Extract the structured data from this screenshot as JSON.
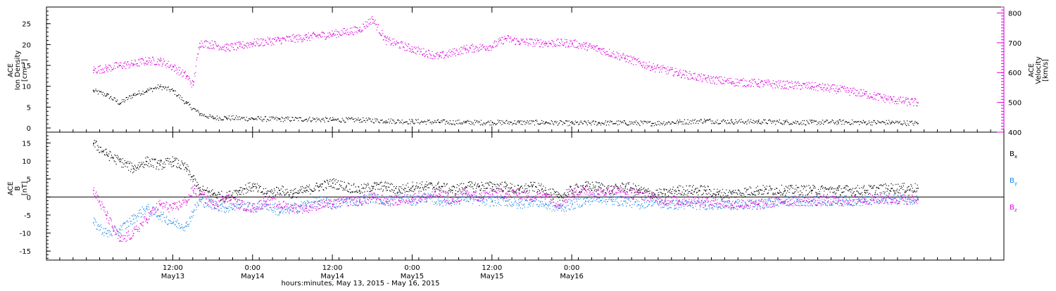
{
  "chart_data": [
    {
      "type": "scatter",
      "panel": "top",
      "ylabel_left_lines": [
        "ACE",
        "Ion Density",
        "[cm⁻³]"
      ],
      "ylabel_right_lines": [
        "ACE",
        "Velocity",
        "[km/s]"
      ],
      "ylim_left": [
        -1,
        29
      ],
      "ylim_right": [
        400,
        820
      ],
      "yticks_left": [
        0,
        5,
        10,
        15,
        20,
        25
      ],
      "yticks_right": [
        400,
        500,
        600,
        700,
        800
      ],
      "series": [
        {
          "axis": "left",
          "color": "#000000",
          "points": [
            [
              0,
              9
            ],
            [
              2,
              8
            ],
            [
              4,
              6
            ],
            [
              6,
              8
            ],
            [
              8,
              9
            ],
            [
              10,
              10
            ],
            [
              12,
              9
            ],
            [
              14,
              6
            ],
            [
              16,
              3.5
            ],
            [
              18,
              2.5
            ],
            [
              20,
              2.5
            ],
            [
              24,
              2.3
            ],
            [
              28,
              2.2
            ],
            [
              32,
              2.2
            ],
            [
              36,
              2.0
            ],
            [
              40,
              2.0
            ],
            [
              44,
              1.8
            ],
            [
              48,
              1.6
            ],
            [
              52,
              1.5
            ],
            [
              56,
              1.4
            ],
            [
              60,
              1.4
            ],
            [
              64,
              1.4
            ],
            [
              68,
              1.4
            ],
            [
              72,
              1.2
            ],
            [
              76,
              1.3
            ],
            [
              80,
              1.3
            ],
            [
              84,
              1.2
            ],
            [
              88,
              1.5
            ],
            [
              92,
              1.8
            ],
            [
              96,
              1.6
            ],
            [
              100,
              1.6
            ],
            [
              104,
              1.5
            ],
            [
              108,
              1.4
            ],
            [
              112,
              1.5
            ],
            [
              116,
              1.4
            ],
            [
              120,
              1.4
            ],
            [
              124,
              1.2
            ]
          ]
        },
        {
          "axis": "right",
          "color": "#dd00dd",
          "points": [
            [
              0,
              610
            ],
            [
              2,
              615
            ],
            [
              4,
              625
            ],
            [
              6,
              630
            ],
            [
              8,
              640
            ],
            [
              10,
              640
            ],
            [
              12,
              620
            ],
            [
              14,
              590
            ],
            [
              15,
              560
            ],
            [
              16,
              700
            ],
            [
              18,
              695
            ],
            [
              20,
              685
            ],
            [
              22,
              690
            ],
            [
              24,
              700
            ],
            [
              28,
              710
            ],
            [
              32,
              720
            ],
            [
              36,
              730
            ],
            [
              40,
              745
            ],
            [
              42,
              780
            ],
            [
              44,
              710
            ],
            [
              48,
              680
            ],
            [
              52,
              655
            ],
            [
              56,
              680
            ],
            [
              60,
              690
            ],
            [
              62,
              715
            ],
            [
              64,
              705
            ],
            [
              68,
              700
            ],
            [
              72,
              700
            ],
            [
              74,
              690
            ],
            [
              76,
              680
            ],
            [
              80,
              650
            ],
            [
              84,
              620
            ],
            [
              88,
              600
            ],
            [
              92,
              580
            ],
            [
              96,
              570
            ],
            [
              100,
              565
            ],
            [
              104,
              560
            ],
            [
              108,
              555
            ],
            [
              112,
              545
            ],
            [
              116,
              530
            ],
            [
              120,
              510
            ],
            [
              124,
              500
            ]
          ]
        }
      ]
    },
    {
      "type": "scatter",
      "panel": "bottom",
      "ylabel_left_lines": [
        "ACE",
        "B",
        "[nT]"
      ],
      "ylim": [
        -17.5,
        18
      ],
      "yticks": [
        -15,
        -10,
        -5,
        0,
        5,
        10,
        15
      ],
      "zero_line": true,
      "series": [
        {
          "name": "Bx",
          "label_main": "B",
          "label_sub": "x",
          "color": "#000000",
          "points": [
            [
              0,
              15
            ],
            [
              2,
              12
            ],
            [
              4,
              10
            ],
            [
              6,
              8
            ],
            [
              8,
              10
            ],
            [
              10,
              9
            ],
            [
              12,
              10
            ],
            [
              14,
              8
            ],
            [
              15,
              5
            ],
            [
              16,
              2
            ],
            [
              18,
              1
            ],
            [
              20,
              0
            ],
            [
              22,
              2
            ],
            [
              24,
              3
            ],
            [
              26,
              1
            ],
            [
              28,
              2
            ],
            [
              30,
              1
            ],
            [
              32,
              2
            ],
            [
              34,
              3
            ],
            [
              36,
              4
            ],
            [
              38,
              3
            ],
            [
              40,
              2
            ],
            [
              42,
              3
            ],
            [
              44,
              3
            ],
            [
              46,
              2
            ],
            [
              48,
              3
            ],
            [
              50,
              3
            ],
            [
              52,
              3
            ],
            [
              54,
              2
            ],
            [
              56,
              3
            ],
            [
              58,
              3
            ],
            [
              60,
              3
            ],
            [
              62,
              3
            ],
            [
              64,
              2
            ],
            [
              66,
              3
            ],
            [
              68,
              2
            ],
            [
              70,
              0
            ],
            [
              72,
              2
            ],
            [
              74,
              3
            ],
            [
              76,
              3
            ],
            [
              78,
              2
            ],
            [
              80,
              3
            ],
            [
              82,
              2
            ],
            [
              84,
              1
            ],
            [
              86,
              1
            ],
            [
              88,
              2
            ],
            [
              90,
              2
            ],
            [
              92,
              2
            ],
            [
              94,
              1
            ],
            [
              96,
              1
            ],
            [
              100,
              2
            ],
            [
              104,
              2
            ],
            [
              108,
              2
            ],
            [
              112,
              2
            ],
            [
              116,
              2
            ],
            [
              120,
              2.5
            ],
            [
              124,
              2.6
            ]
          ]
        },
        {
          "name": "By",
          "label_main": "B",
          "label_sub": "y",
          "color": "#1e88e5",
          "points": [
            [
              0,
              -7
            ],
            [
              2,
              -10
            ],
            [
              4,
              -9
            ],
            [
              6,
              -6
            ],
            [
              8,
              -3
            ],
            [
              10,
              -5
            ],
            [
              12,
              -7
            ],
            [
              14,
              -8
            ],
            [
              15,
              -4
            ],
            [
              16,
              -1
            ],
            [
              18,
              -2
            ],
            [
              20,
              -3
            ],
            [
              22,
              -2
            ],
            [
              24,
              -3
            ],
            [
              26,
              -2
            ],
            [
              28,
              -4
            ],
            [
              30,
              -3
            ],
            [
              32,
              -2
            ],
            [
              34,
              -1
            ],
            [
              36,
              -2
            ],
            [
              38,
              -1
            ],
            [
              40,
              -1
            ],
            [
              42,
              0
            ],
            [
              44,
              -1
            ],
            [
              46,
              0
            ],
            [
              48,
              -1
            ],
            [
              50,
              0
            ],
            [
              52,
              -1
            ],
            [
              54,
              -1
            ],
            [
              56,
              0
            ],
            [
              58,
              -1
            ],
            [
              60,
              -1
            ],
            [
              62,
              -1
            ],
            [
              64,
              -2
            ],
            [
              66,
              -1
            ],
            [
              68,
              -2
            ],
            [
              70,
              -3
            ],
            [
              72,
              -2
            ],
            [
              74,
              -1
            ],
            [
              76,
              0
            ],
            [
              78,
              -1
            ],
            [
              80,
              -1
            ],
            [
              82,
              -2
            ],
            [
              84,
              -1
            ],
            [
              86,
              -2
            ],
            [
              88,
              -2
            ],
            [
              92,
              -2
            ],
            [
              96,
              -2
            ],
            [
              100,
              -2
            ],
            [
              104,
              -1
            ],
            [
              108,
              -1
            ],
            [
              112,
              -1
            ],
            [
              116,
              -1
            ],
            [
              120,
              -0.5
            ],
            [
              124,
              -0.5
            ]
          ]
        },
        {
          "name": "Bz",
          "label_main": "B",
          "label_sub": "z",
          "color": "#dd00dd",
          "points": [
            [
              0,
              2
            ],
            [
              2,
              -5
            ],
            [
              4,
              -12
            ],
            [
              6,
              -10
            ],
            [
              8,
              -6
            ],
            [
              10,
              -2
            ],
            [
              12,
              -3
            ],
            [
              14,
              -1
            ],
            [
              15,
              2
            ],
            [
              16,
              1
            ],
            [
              18,
              -2
            ],
            [
              20,
              0
            ],
            [
              22,
              -2
            ],
            [
              24,
              -3
            ],
            [
              26,
              -1
            ],
            [
              28,
              -2
            ],
            [
              30,
              -3
            ],
            [
              32,
              -3
            ],
            [
              34,
              -2
            ],
            [
              36,
              -2
            ],
            [
              38,
              -1
            ],
            [
              40,
              -1
            ],
            [
              42,
              0
            ],
            [
              44,
              -1
            ],
            [
              46,
              -1
            ],
            [
              48,
              0
            ],
            [
              50,
              0
            ],
            [
              52,
              1
            ],
            [
              54,
              -1
            ],
            [
              56,
              1
            ],
            [
              58,
              0
            ],
            [
              60,
              1
            ],
            [
              62,
              1
            ],
            [
              64,
              1
            ],
            [
              66,
              0
            ],
            [
              68,
              1
            ],
            [
              70,
              -2
            ],
            [
              72,
              1
            ],
            [
              74,
              2
            ],
            [
              76,
              1
            ],
            [
              78,
              2
            ],
            [
              80,
              1
            ],
            [
              82,
              1
            ],
            [
              84,
              0
            ],
            [
              86,
              -1
            ],
            [
              88,
              -1
            ],
            [
              92,
              -1
            ],
            [
              96,
              -2
            ],
            [
              100,
              -2
            ],
            [
              104,
              -1
            ],
            [
              108,
              -1
            ],
            [
              112,
              -1
            ],
            [
              116,
              -0.5
            ],
            [
              120,
              -0.5
            ],
            [
              124,
              -0.5
            ]
          ]
        }
      ]
    }
  ],
  "x_axis": {
    "range_hours": [
      -7,
      137
    ],
    "data_end_hours": 124,
    "ticks": [
      {
        "hours": 12,
        "time": "12:00",
        "date": "May13"
      },
      {
        "hours": 24,
        "time": "0:00",
        "date": "May14"
      },
      {
        "hours": 36,
        "time": "12:00",
        "date": "May14"
      },
      {
        "hours": 48,
        "time": "0:00",
        "date": "May15"
      },
      {
        "hours": 60,
        "time": "12:00",
        "date": "May15"
      },
      {
        "hours": 72,
        "time": "0:00",
        "date": "May16"
      }
    ],
    "caption": "hours:minutes, May 13, 2015 - May 16, 2015"
  }
}
